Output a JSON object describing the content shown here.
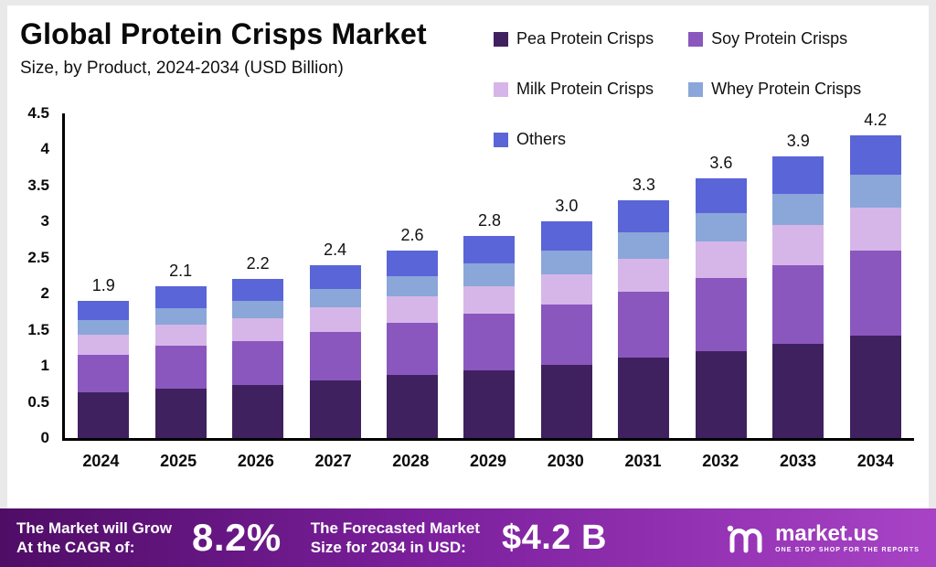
{
  "title": "Global Protein Crisps Market",
  "subtitle": "Size, by Product, 2024-2034 (USD Billion)",
  "chart_data": {
    "type": "bar",
    "stacked": true,
    "title": "Global Protein Crisps Market",
    "subtitle": "Size, by Product, 2024-2034 (USD Billion)",
    "categories": [
      "2024",
      "2025",
      "2026",
      "2027",
      "2028",
      "2029",
      "2030",
      "2031",
      "2032",
      "2033",
      "2034"
    ],
    "totals": [
      1.9,
      2.1,
      2.2,
      2.4,
      2.6,
      2.8,
      3.0,
      3.3,
      3.6,
      3.9,
      4.2
    ],
    "series": [
      {
        "name": "Pea Protein Crisps",
        "color": "#40215f",
        "values": [
          0.63,
          0.69,
          0.73,
          0.8,
          0.87,
          0.94,
          1.01,
          1.11,
          1.21,
          1.31,
          1.42
        ]
      },
      {
        "name": "Soy Protein Crisps",
        "color": "#8a57be",
        "values": [
          0.53,
          0.59,
          0.62,
          0.67,
          0.73,
          0.78,
          0.84,
          0.92,
          1.01,
          1.09,
          1.18
        ]
      },
      {
        "name": "Milk Protein Crisps",
        "color": "#d6b6e8",
        "values": [
          0.27,
          0.29,
          0.31,
          0.34,
          0.36,
          0.39,
          0.42,
          0.46,
          0.5,
          0.55,
          0.59
        ]
      },
      {
        "name": "Whey Protein Crisps",
        "color": "#8ba6d8",
        "values": [
          0.21,
          0.23,
          0.24,
          0.26,
          0.29,
          0.31,
          0.33,
          0.36,
          0.4,
          0.43,
          0.46
        ]
      },
      {
        "name": "Others",
        "color": "#5a65d8",
        "values": [
          0.26,
          0.3,
          0.3,
          0.33,
          0.35,
          0.38,
          0.4,
          0.45,
          0.48,
          0.52,
          0.55
        ]
      }
    ],
    "ylim": [
      0,
      4.5
    ],
    "y_ticks": [
      "4.5",
      "4",
      "3.5",
      "3",
      "2.5",
      "2",
      "1.5",
      "1",
      "0.5",
      "0"
    ],
    "legend_position": "top-right",
    "grid": false
  },
  "banner": {
    "cagr_label_line1": "The Market will Grow",
    "cagr_label_line2": "At the CAGR of:",
    "cagr_value": "8.2%",
    "forecast_label_line1": "The Forecasted Market",
    "forecast_label_line2": "Size for 2034 in USD:",
    "forecast_value": "$4.2 B",
    "brand": "market.us",
    "brand_tagline": "ONE STOP SHOP FOR THE REPORTS"
  }
}
